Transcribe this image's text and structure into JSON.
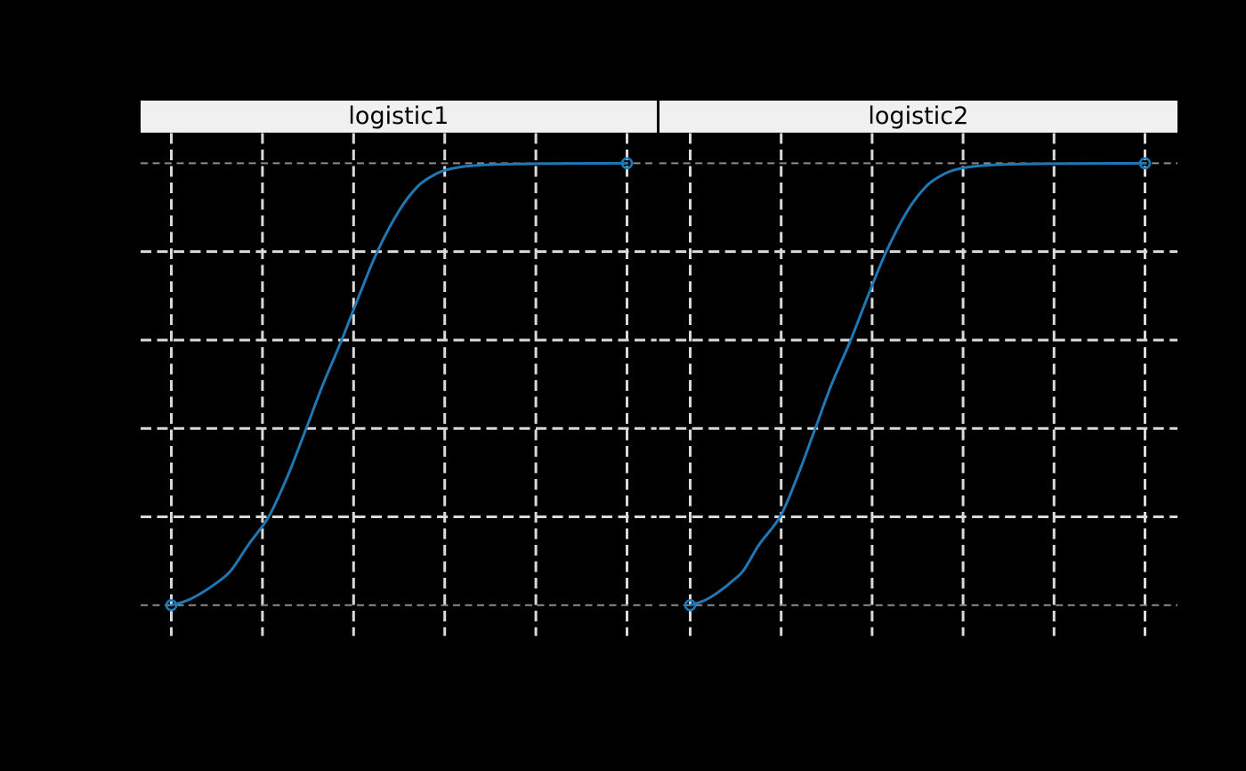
{
  "colors": {
    "background": "#000000",
    "curve": "#1f77b4",
    "gridline": "#d9d9d9",
    "reference_line": "#8c8c8c",
    "strip_background": "#f0f0f0",
    "strip_text": "#000000"
  },
  "chart_data": {
    "type": "line",
    "title": "",
    "xlabel": "",
    "ylabel": "",
    "legend": "none",
    "grid": "dashed",
    "ylim": [
      0,
      1
    ],
    "x_gridlines": [
      0,
      0.2,
      0.4,
      0.6,
      0.8,
      1.0
    ],
    "y_gridlines": [
      0.2,
      0.4,
      0.6,
      0.8
    ],
    "reference_lines_y": [
      0,
      1
    ],
    "marker_style": "open-circle-endpoints",
    "facets": [
      {
        "title": "logistic1",
        "points": [
          [
            0.0,
            0.0
          ],
          [
            0.018,
            0.005
          ],
          [
            0.04,
            0.013
          ],
          [
            0.073,
            0.032
          ],
          [
            0.105,
            0.055
          ],
          [
            0.132,
            0.08
          ],
          [
            0.17,
            0.138
          ],
          [
            0.214,
            0.201
          ],
          [
            0.255,
            0.292
          ],
          [
            0.295,
            0.397
          ],
          [
            0.333,
            0.5
          ],
          [
            0.373,
            0.598
          ],
          [
            0.412,
            0.7
          ],
          [
            0.452,
            0.8
          ],
          [
            0.5,
            0.893
          ],
          [
            0.54,
            0.947
          ],
          [
            0.572,
            0.971
          ],
          [
            0.6,
            0.984
          ],
          [
            0.645,
            0.993
          ],
          [
            0.7,
            0.9967
          ],
          [
            0.8,
            0.999
          ],
          [
            0.9,
            0.9996
          ],
          [
            1.0,
            1.0
          ]
        ],
        "endpoint_markers": [
          [
            0.0,
            0.0
          ],
          [
            1.0,
            1.0
          ]
        ]
      },
      {
        "title": "logistic2",
        "points": [
          [
            0.0,
            0.0
          ],
          [
            0.016,
            0.005
          ],
          [
            0.036,
            0.013
          ],
          [
            0.065,
            0.032
          ],
          [
            0.093,
            0.055
          ],
          [
            0.118,
            0.08
          ],
          [
            0.152,
            0.138
          ],
          [
            0.198,
            0.201
          ],
          [
            0.236,
            0.292
          ],
          [
            0.274,
            0.397
          ],
          [
            0.311,
            0.5
          ],
          [
            0.352,
            0.598
          ],
          [
            0.391,
            0.7
          ],
          [
            0.431,
            0.8
          ],
          [
            0.478,
            0.893
          ],
          [
            0.518,
            0.947
          ],
          [
            0.55,
            0.971
          ],
          [
            0.578,
            0.984
          ],
          [
            0.623,
            0.993
          ],
          [
            0.68,
            0.9967
          ],
          [
            0.785,
            0.999
          ],
          [
            0.895,
            0.9996
          ],
          [
            1.0,
            1.0
          ]
        ],
        "endpoint_markers": [
          [
            0.0,
            0.0
          ],
          [
            1.0,
            1.0
          ]
        ]
      }
    ]
  }
}
